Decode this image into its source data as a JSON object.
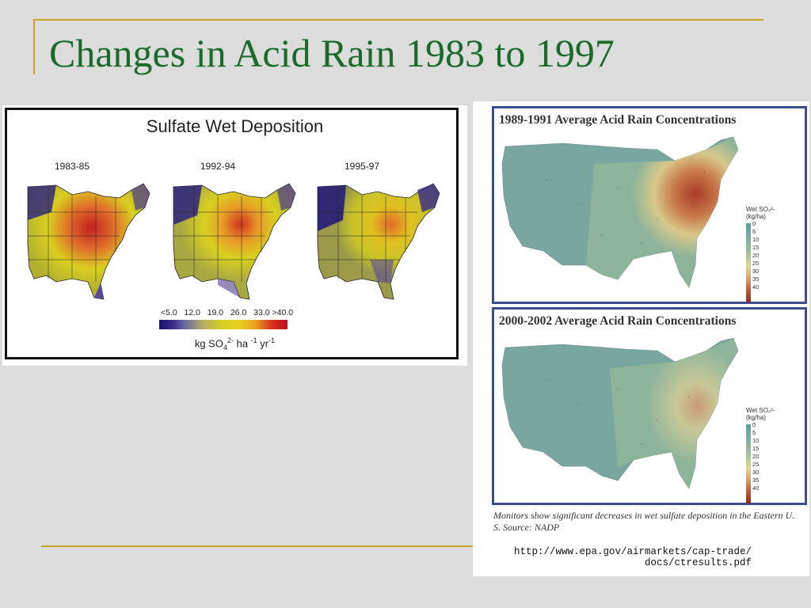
{
  "slide": {
    "title": "Changes in Acid Rain 1983 to 1997",
    "accent_color": "#c9a227",
    "title_color": "#1a6a2a"
  },
  "left_figure": {
    "title": "Sulfate Wet Deposition",
    "periods": [
      "1983-85",
      "1992-94",
      "1995-97"
    ],
    "scale_labels": [
      "<5.0",
      "12.0",
      "19.0",
      "26.0",
      "33.0",
      ">40.0"
    ],
    "units": {
      "base": "kg SO",
      "sub": "4",
      "sup1": "2-",
      "mid1": " ha ",
      "sup2": "-1",
      "mid2": " yr",
      "sup3": "-1"
    }
  },
  "right_figure": {
    "panels": [
      {
        "title": "1989-1991 Average Acid Rain Concentrations"
      },
      {
        "title": "2000-2002 Average Acid Rain Concentrations"
      }
    ],
    "legend": {
      "title_line1": "Wet SO₄²-",
      "title_line2": "(kg/ha)",
      "ticks": [
        "0",
        "5",
        "10",
        "15",
        "20",
        "25",
        "30",
        "35",
        "40"
      ]
    },
    "caption": "Monitors show significant decreases in wet sulfate deposition in the Eastern U. S. Source: NADP",
    "url_line1": "http://www.epa.gov/airmarkets/cap-trade/",
    "url_line2": "docs/ctresults.pdf"
  }
}
